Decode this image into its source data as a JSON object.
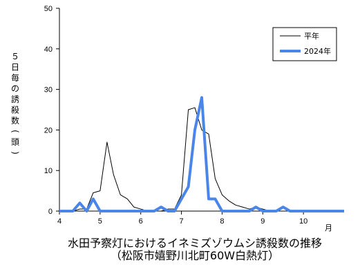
{
  "chart_data": {
    "type": "line",
    "title": "水田予察灯におけるイネミズゾウムシ誘殺数の推移",
    "subtitle": "（松阪市嬉野川北町60W白熱灯）",
    "xlabel": "月",
    "ylabel": "５日毎の誘殺数(頭)",
    "xlim": [
      4,
      11
    ],
    "ylim": [
      0,
      50
    ],
    "x_ticks": [
      4,
      5,
      6,
      7,
      8,
      9,
      10
    ],
    "y_ticks": [
      0,
      10,
      20,
      30,
      40,
      50
    ],
    "grid": false,
    "legend_position": "top-right",
    "x": [
      4.0,
      4.17,
      4.33,
      4.5,
      4.67,
      4.83,
      5.0,
      5.17,
      5.33,
      5.5,
      5.67,
      5.83,
      6.0,
      6.17,
      6.33,
      6.5,
      6.67,
      6.83,
      7.0,
      7.17,
      7.33,
      7.5,
      7.67,
      7.83,
      8.0,
      8.17,
      8.33,
      8.5,
      8.67,
      8.83,
      9.0,
      9.17,
      9.33,
      9.5,
      9.67,
      9.83,
      10.0,
      10.17,
      10.33,
      10.5,
      10.67,
      10.83,
      11.0
    ],
    "series": [
      {
        "name": "平年",
        "color": "#000000",
        "values": [
          0,
          0,
          0,
          0.5,
          0.5,
          4.5,
          5,
          17,
          9,
          4,
          3,
          1,
          0.5,
          0,
          0,
          0,
          0.5,
          0.5,
          4,
          25,
          25.5,
          20,
          19,
          8,
          4,
          2.5,
          1.5,
          1,
          0.5,
          1,
          0.5,
          0,
          0,
          0,
          0,
          0,
          0,
          0,
          0,
          0,
          0,
          0,
          0
        ]
      },
      {
        "name": "2024年",
        "color": "#4a86e8",
        "values": [
          0,
          0,
          0,
          2,
          0,
          3,
          0,
          0,
          0,
          0,
          0,
          0,
          0,
          0,
          0,
          1,
          0,
          0,
          3,
          6,
          20,
          28,
          3,
          3,
          0,
          0,
          0,
          0,
          0,
          1,
          0,
          0,
          0,
          1,
          0,
          0,
          0,
          0,
          0,
          0,
          0,
          0,
          0
        ]
      }
    ]
  }
}
